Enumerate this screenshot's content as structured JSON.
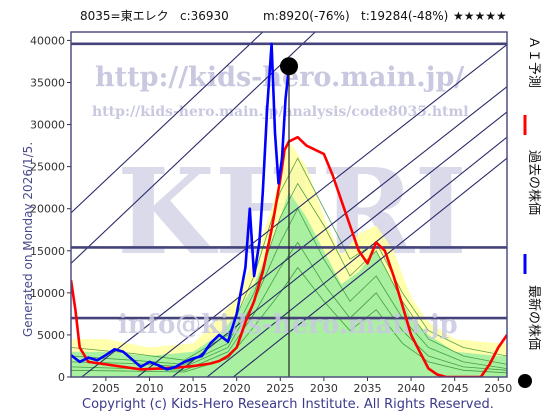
{
  "header": {
    "ticker": "8035=東エレク",
    "close": "c:36930",
    "min": "m:8920(-76%)",
    "target": "t:19284(-48%)",
    "rating": "★★★★★"
  },
  "watermarks": {
    "url_main": "http://kids-hero.main.jp/",
    "url_analysis": "http://kids-hero.main.jp/analysis/code8035.html",
    "brand": "KHRI",
    "info": "info@kids-hero.main.jp"
  },
  "generated_label": "Generated on Monday 2026/1/5.",
  "footer": "Copyright (c) Kids-Hero Research Institute. All Rights Reserved.",
  "legend": [
    {
      "label": "ＡＩ予測",
      "color": "#ff0000",
      "marker": "line"
    },
    {
      "label": "過去の株価",
      "color": "#0000ff",
      "marker": "line"
    },
    {
      "label": "最新の株価",
      "color": "#000000",
      "marker": "dot"
    }
  ],
  "colors": {
    "frame": "#44447a",
    "ai_forecast": "#ff0000",
    "past_price": "#0000ff",
    "latest": "#000000",
    "band_outer": "#ffffa0",
    "band_inner": "#a0f0a0",
    "sim_lines": "#2a8a2a",
    "trend_lines": "#2a2a6a",
    "watermark": "#c8c8e0"
  },
  "chart_data": {
    "type": "line",
    "xlim": [
      2001,
      2051
    ],
    "ylim": [
      0,
      41000
    ],
    "x_ticks": [
      2005,
      2010,
      2015,
      2020,
      2025,
      2030,
      2035,
      2040,
      2045,
      2050
    ],
    "y_ticks": [
      0,
      5000,
      10000,
      15000,
      20000,
      25000,
      30000,
      35000,
      40000
    ],
    "grid": false,
    "legend_position": "right",
    "horizontal_levels": [
      39600,
      15400,
      7000
    ],
    "latest_point": {
      "x": 2026.0,
      "y": 36930
    },
    "latest_year_marker": 2026.0,
    "series": [
      {
        "name": "AI予測",
        "points": [
          [
            2001,
            11500
          ],
          [
            2001.5,
            8000
          ],
          [
            2002,
            3500
          ],
          [
            2003,
            1800
          ],
          [
            2005,
            1500
          ],
          [
            2007,
            1200
          ],
          [
            2009,
            900
          ],
          [
            2011,
            1000
          ],
          [
            2013,
            1100
          ],
          [
            2015,
            1300
          ],
          [
            2017,
            1600
          ],
          [
            2018,
            1900
          ],
          [
            2019,
            2500
          ],
          [
            2020,
            3500
          ],
          [
            2021,
            6500
          ],
          [
            2022,
            9000
          ],
          [
            2023,
            12500
          ],
          [
            2024,
            17500
          ],
          [
            2025,
            23500
          ],
          [
            2025.5,
            27000
          ],
          [
            2026,
            28000
          ],
          [
            2027,
            28500
          ],
          [
            2028,
            27500
          ],
          [
            2029,
            27000
          ],
          [
            2030,
            26500
          ],
          [
            2031,
            24000
          ],
          [
            2032,
            21000
          ],
          [
            2033,
            18000
          ],
          [
            2034,
            15000
          ],
          [
            2035,
            13500
          ],
          [
            2036,
            16000
          ],
          [
            2037,
            15000
          ],
          [
            2038,
            12000
          ],
          [
            2039,
            8500
          ],
          [
            2040,
            5000
          ],
          [
            2041,
            3000
          ],
          [
            2042,
            1000
          ],
          [
            2043,
            300
          ],
          [
            2044,
            0
          ],
          [
            2048,
            0
          ],
          [
            2049,
            1500
          ],
          [
            2050,
            3500
          ],
          [
            2051,
            5000
          ]
        ]
      },
      {
        "name": "過去の株価",
        "points": [
          [
            2001,
            2600
          ],
          [
            2002,
            1800
          ],
          [
            2003,
            2300
          ],
          [
            2004,
            2000
          ],
          [
            2005,
            2600
          ],
          [
            2006,
            3300
          ],
          [
            2007,
            3000
          ],
          [
            2008,
            2100
          ],
          [
            2009,
            1200
          ],
          [
            2010,
            1800
          ],
          [
            2011,
            1400
          ],
          [
            2012,
            900
          ],
          [
            2013,
            1200
          ],
          [
            2014,
            1800
          ],
          [
            2015,
            2200
          ],
          [
            2016,
            2500
          ],
          [
            2017,
            4000
          ],
          [
            2018,
            5000
          ],
          [
            2019,
            4200
          ],
          [
            2020,
            7500
          ],
          [
            2021,
            13000
          ],
          [
            2021.5,
            20000
          ],
          [
            2022,
            12000
          ],
          [
            2022.6,
            16000
          ],
          [
            2023,
            22000
          ],
          [
            2023.5,
            32000
          ],
          [
            2024,
            39600
          ],
          [
            2024.4,
            29000
          ],
          [
            2024.8,
            23000
          ],
          [
            2025.2,
            26000
          ],
          [
            2025.6,
            33000
          ],
          [
            2026.0,
            36930
          ]
        ]
      }
    ],
    "band": {
      "outer_upper": [
        [
          2001,
          4500
        ],
        [
          2005,
          4500
        ],
        [
          2010,
          3500
        ],
        [
          2015,
          4000
        ],
        [
          2018,
          7000
        ],
        [
          2020,
          9500
        ],
        [
          2022,
          14000
        ],
        [
          2024,
          20000
        ],
        [
          2026,
          28000
        ],
        [
          2028,
          25000
        ],
        [
          2030,
          19000
        ],
        [
          2032,
          14500
        ],
        [
          2034,
          17000
        ],
        [
          2036,
          18000
        ],
        [
          2038,
          15000
        ],
        [
          2040,
          9500
        ],
        [
          2042,
          6500
        ],
        [
          2045,
          4500
        ],
        [
          2050,
          4000
        ],
        [
          2051,
          4000
        ]
      ],
      "outer_lower": [
        [
          2001,
          0
        ],
        [
          2051,
          0
        ]
      ],
      "inner_upper": [
        [
          2001,
          3000
        ],
        [
          2005,
          3000
        ],
        [
          2010,
          2500
        ],
        [
          2015,
          3000
        ],
        [
          2018,
          5000
        ],
        [
          2020,
          7500
        ],
        [
          2022,
          11000
        ],
        [
          2024,
          16000
        ],
        [
          2026,
          22000
        ],
        [
          2028,
          19000
        ],
        [
          2030,
          15000
        ],
        [
          2032,
          11000
        ],
        [
          2034,
          12500
        ],
        [
          2036,
          15000
        ],
        [
          2038,
          11000
        ],
        [
          2040,
          7000
        ],
        [
          2042,
          5000
        ],
        [
          2045,
          3000
        ],
        [
          2050,
          2500
        ],
        [
          2051,
          2500
        ]
      ]
    },
    "sim_lines": [
      [
        [
          2001,
          2500
        ],
        [
          2008,
          2000
        ],
        [
          2014,
          1500
        ],
        [
          2019,
          4000
        ],
        [
          2022,
          10000
        ],
        [
          2025,
          19000
        ],
        [
          2027,
          23000
        ],
        [
          2030,
          18000
        ],
        [
          2033,
          12000
        ],
        [
          2036,
          15000
        ],
        [
          2039,
          9000
        ],
        [
          2042,
          4500
        ],
        [
          2046,
          2500
        ],
        [
          2051,
          1500
        ]
      ],
      [
        [
          2001,
          1800
        ],
        [
          2008,
          1600
        ],
        [
          2014,
          1200
        ],
        [
          2019,
          3500
        ],
        [
          2022,
          9000
        ],
        [
          2025,
          16000
        ],
        [
          2027,
          20000
        ],
        [
          2030,
          14000
        ],
        [
          2033,
          9000
        ],
        [
          2036,
          12000
        ],
        [
          2039,
          7000
        ],
        [
          2042,
          3500
        ],
        [
          2046,
          1800
        ],
        [
          2051,
          1000
        ]
      ],
      [
        [
          2001,
          1200
        ],
        [
          2008,
          1000
        ],
        [
          2014,
          800
        ],
        [
          2019,
          3000
        ],
        [
          2022,
          7500
        ],
        [
          2025,
          13000
        ],
        [
          2027,
          16000
        ],
        [
          2030,
          11000
        ],
        [
          2033,
          7000
        ],
        [
          2036,
          10000
        ],
        [
          2039,
          5500
        ],
        [
          2042,
          2500
        ],
        [
          2046,
          1200
        ],
        [
          2051,
          800
        ]
      ],
      [
        [
          2001,
          3500
        ],
        [
          2008,
          2800
        ],
        [
          2014,
          2000
        ],
        [
          2019,
          5000
        ],
        [
          2022,
          12000
        ],
        [
          2025,
          22000
        ],
        [
          2027,
          26000
        ],
        [
          2030,
          20000
        ],
        [
          2033,
          14000
        ],
        [
          2036,
          16000
        ],
        [
          2039,
          10000
        ],
        [
          2042,
          5500
        ],
        [
          2046,
          3500
        ],
        [
          2051,
          2500
        ]
      ],
      [
        [
          2001,
          800
        ],
        [
          2008,
          700
        ],
        [
          2014,
          600
        ],
        [
          2019,
          2200
        ],
        [
          2022,
          6000
        ],
        [
          2025,
          10000
        ],
        [
          2027,
          13000
        ],
        [
          2030,
          9000
        ],
        [
          2033,
          5500
        ],
        [
          2036,
          8000
        ],
        [
          2039,
          4000
        ],
        [
          2042,
          1800
        ],
        [
          2046,
          800
        ],
        [
          2051,
          500
        ]
      ]
    ],
    "trend_lines": [
      [
        [
          2001,
          19500
        ],
        [
          2023,
          41000
        ]
      ],
      [
        [
          2001,
          13500
        ],
        [
          2029,
          41000
        ]
      ],
      [
        [
          2001,
          -1000
        ],
        [
          2051,
          39500
        ]
      ],
      [
        [
          2008,
          -500
        ],
        [
          2051,
          34500
        ]
      ],
      [
        [
          2012,
          -500
        ],
        [
          2051,
          31500
        ]
      ],
      [
        [
          2016,
          -500
        ],
        [
          2051,
          28500
        ]
      ],
      [
        [
          2019,
          -500
        ],
        [
          2051,
          26000
        ]
      ]
    ]
  }
}
